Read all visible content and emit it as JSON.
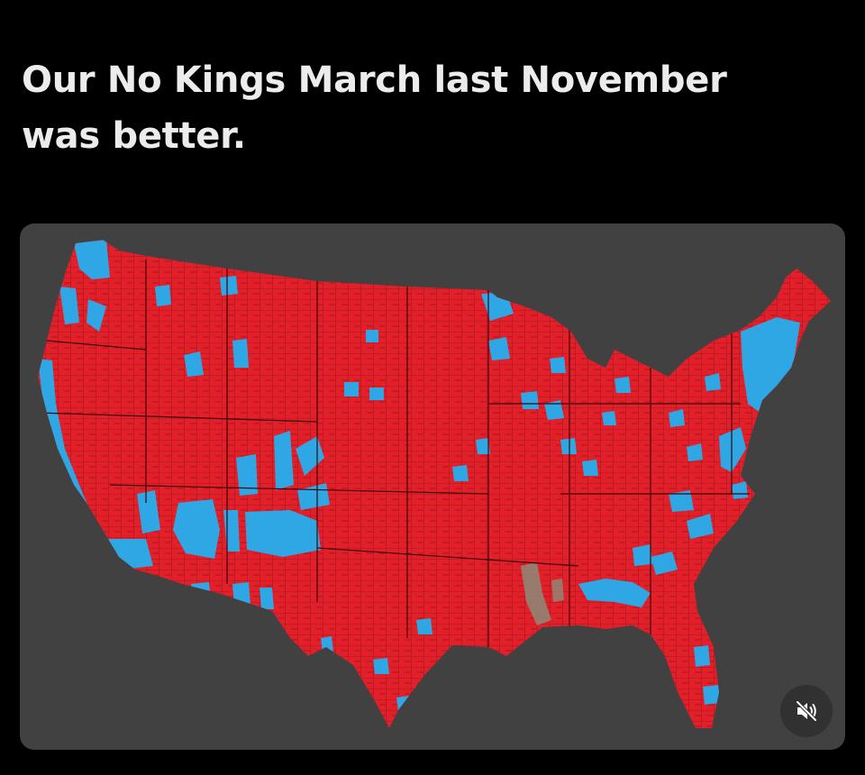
{
  "post": {
    "text_lines": [
      "Our No Kings March last November",
      "was better."
    ]
  },
  "media": {
    "map_colors": {
      "land": "#e3202a",
      "blue": "#2fa7e4",
      "gray": "#8c8c7a",
      "background": "#414141",
      "county_lines": "#5a0d10"
    },
    "controls": {
      "mute_icon": "speaker-muted-icon"
    }
  }
}
